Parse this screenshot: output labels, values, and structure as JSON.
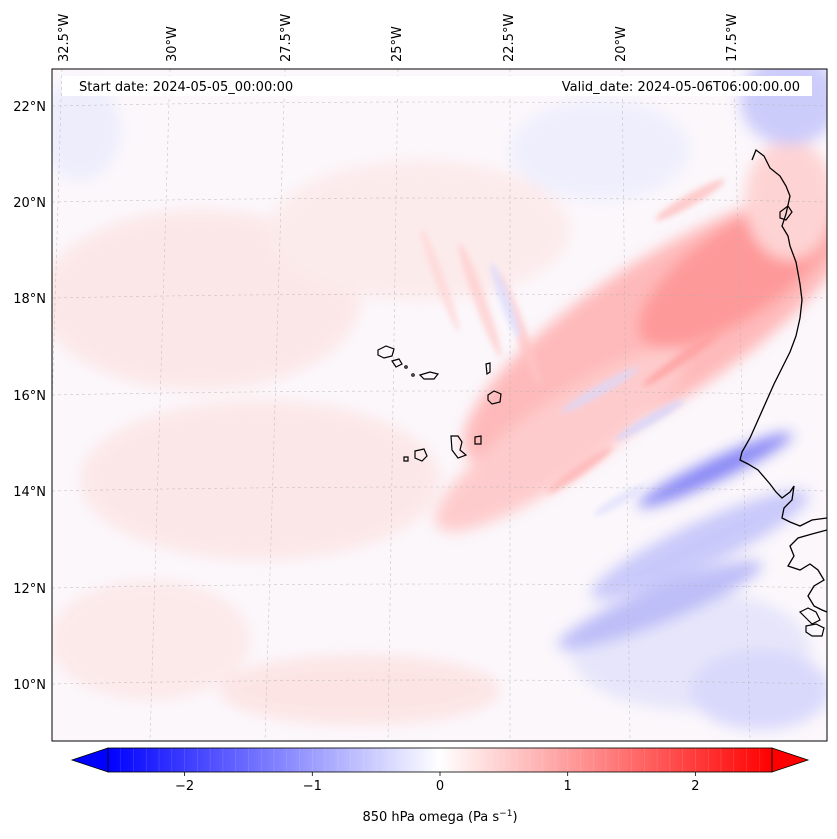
{
  "map": {
    "start_label": "Start date: 2024-05-05_00:00:00",
    "valid_label": "Valid_date: 2024-05-06T06:00:00.00",
    "lon_labels": [
      "32.5°W",
      "30°W",
      "27.5°W",
      "25°W",
      "22.5°W",
      "20°W",
      "17.5°W"
    ],
    "lat_labels": [
      "22°N",
      "20°N",
      "18°N",
      "16°N",
      "14°N",
      "12°N",
      "10°N"
    ],
    "colors": {
      "positive": "#ff0000",
      "negative": "#0000ff",
      "zero": "#ffffff",
      "coast": "#000000",
      "grid": "#b0b0b0"
    }
  },
  "colorbar": {
    "tick_labels": [
      "−2",
      "−1",
      "0",
      "1",
      "2"
    ],
    "label_text": "850 hPa omega (Pa s",
    "label_exp": "−1",
    "label_close": ")",
    "range": [
      -2.6,
      2.6
    ]
  }
}
